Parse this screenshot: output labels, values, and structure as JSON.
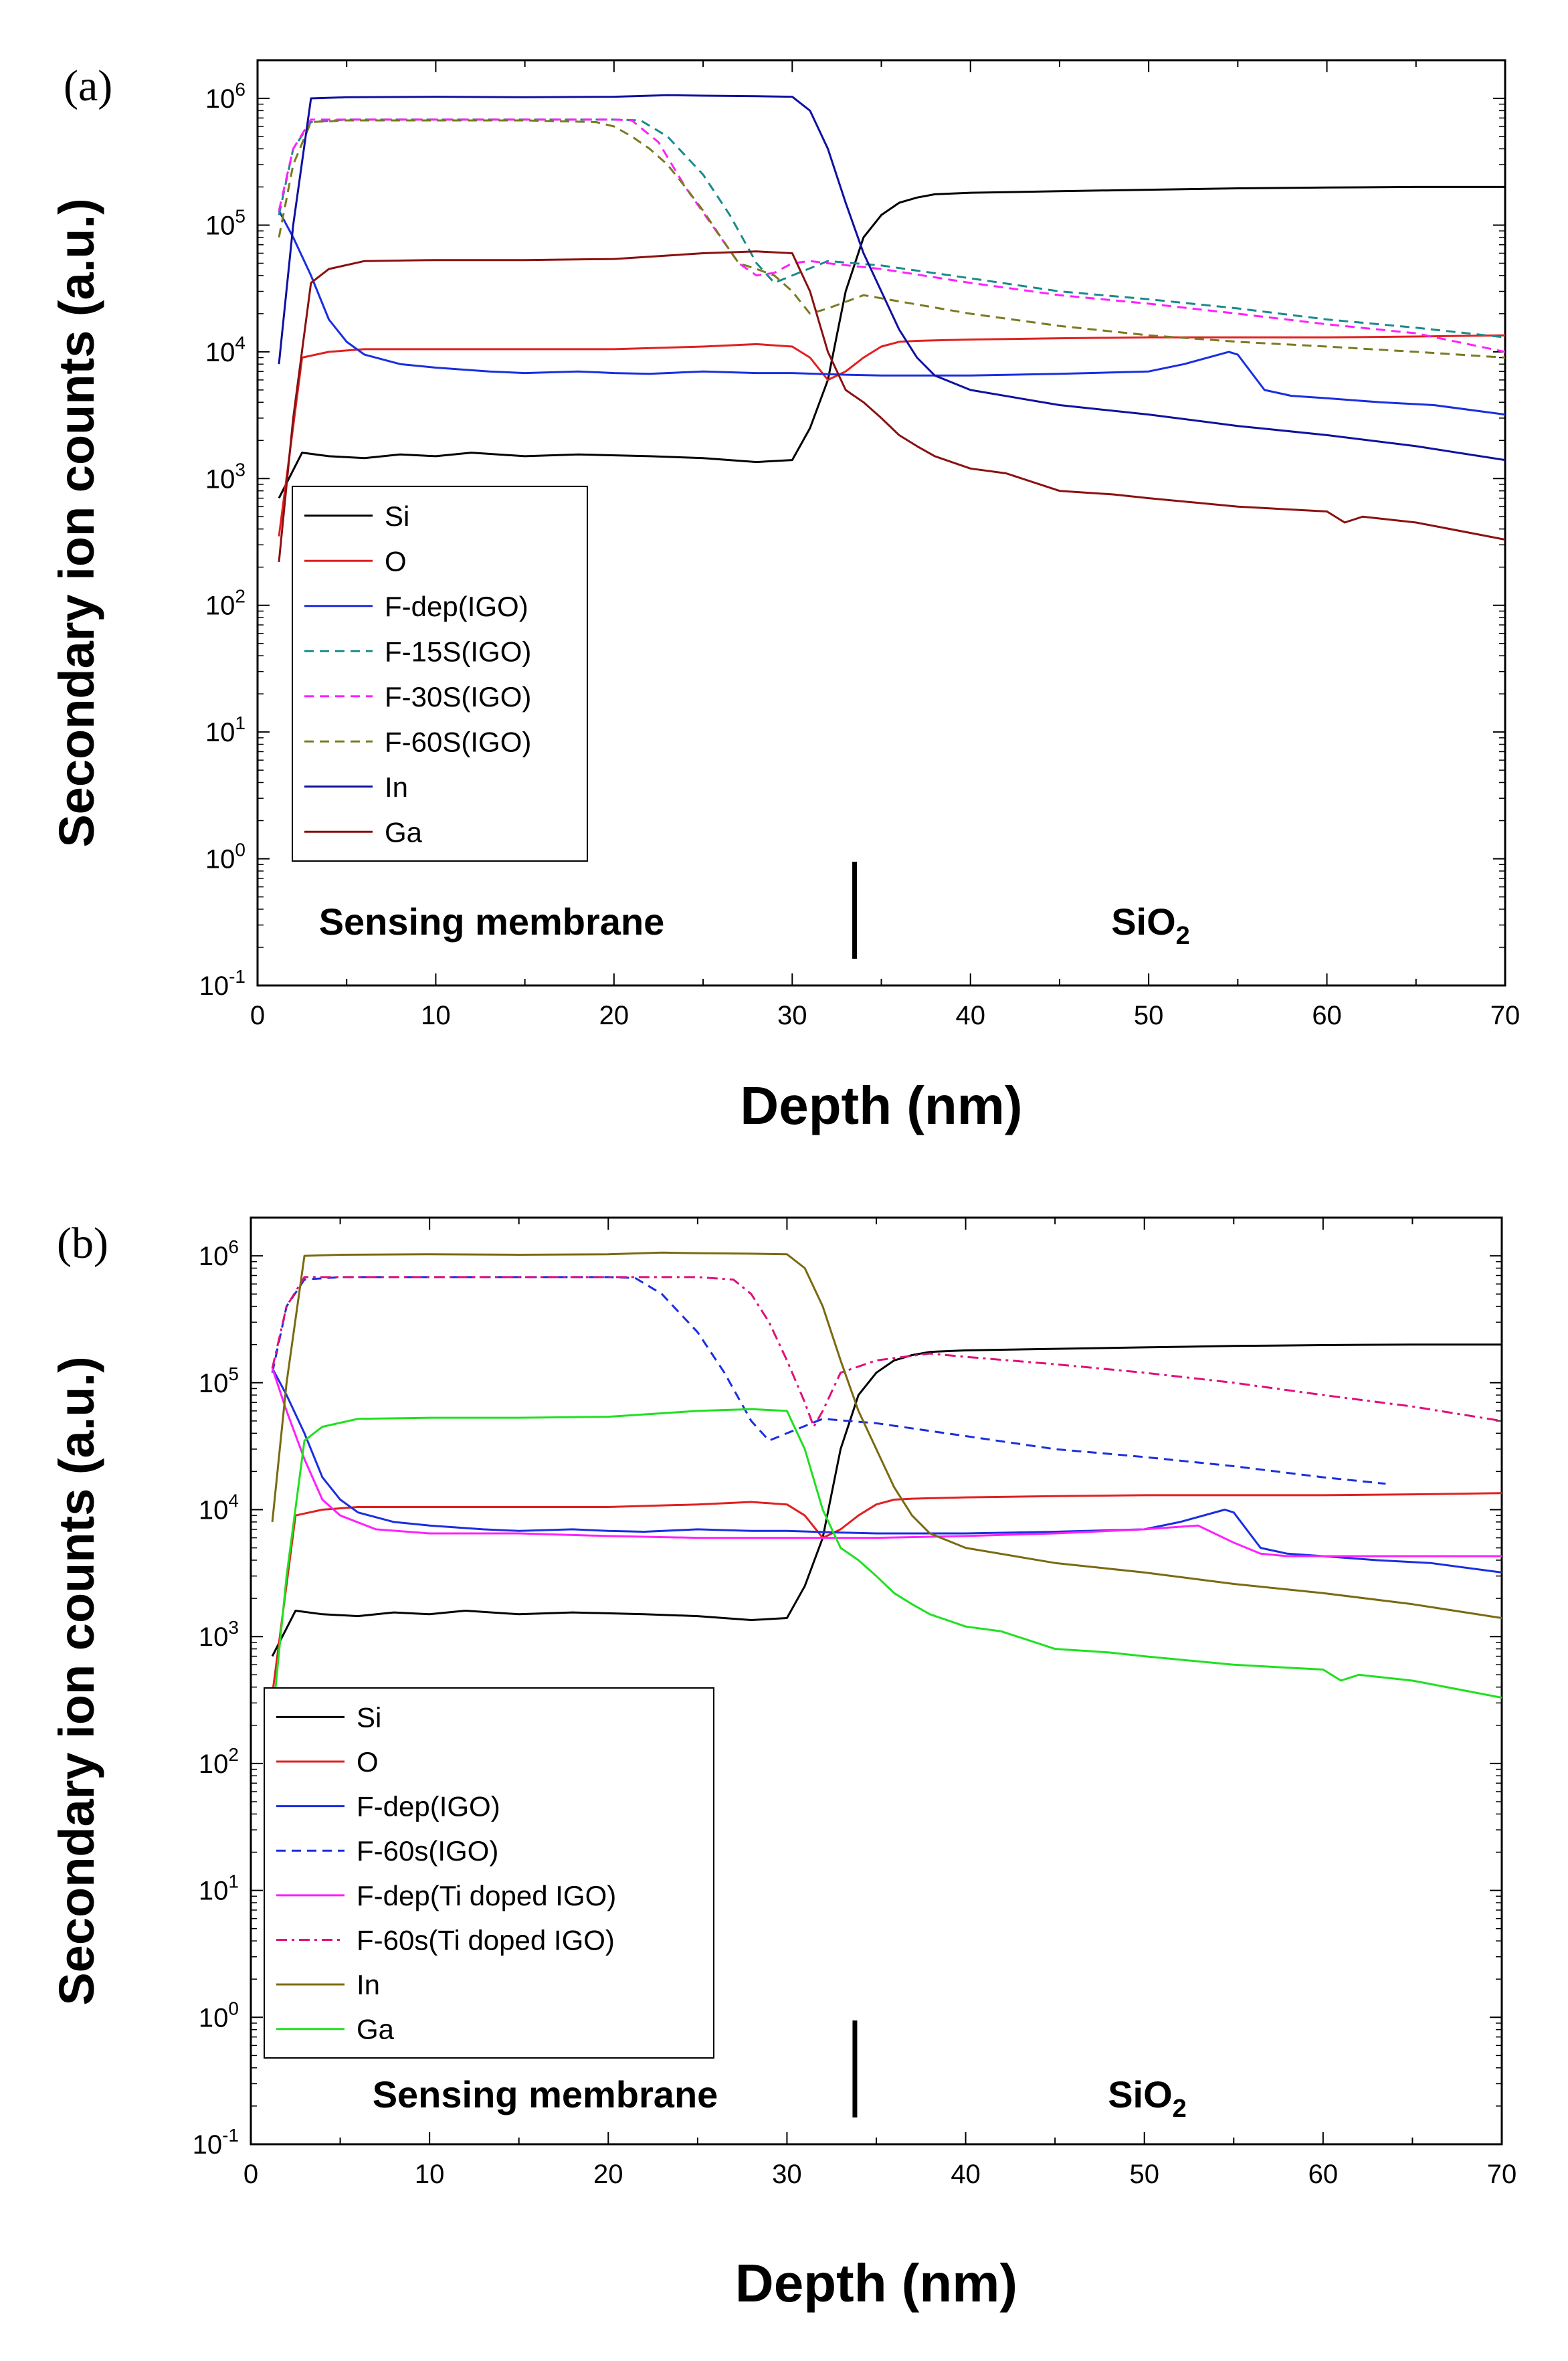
{
  "chart_data": [
    {
      "type": "line",
      "panel_label": "(a)",
      "xlabel": "Depth (nm)",
      "ylabel": "Secondary ion counts (a.u.)",
      "xlim": [
        0,
        70
      ],
      "ylim": [
        0.1,
        2000000
      ],
      "yscale": "log",
      "x_ticks": [
        "0",
        "10",
        "20",
        "30",
        "40",
        "50",
        "60",
        "70"
      ],
      "y_ticks": [
        {
          "base": "10",
          "exp": "-1"
        },
        {
          "base": "10",
          "exp": "0"
        },
        {
          "base": "10",
          "exp": "1"
        },
        {
          "base": "10",
          "exp": "2"
        },
        {
          "base": "10",
          "exp": "3"
        },
        {
          "base": "10",
          "exp": "4"
        },
        {
          "base": "10",
          "exp": "5"
        },
        {
          "base": "10",
          "exp": "6"
        }
      ],
      "interface_depth": 33.5,
      "region_left": "Sensing membrane",
      "region_right": {
        "base": "SiO",
        "sub": "2"
      },
      "legend_position": "lower-left",
      "series": [
        {
          "name": "Si",
          "color": "#000000",
          "dash": "solid",
          "x": [
            1.2,
            2.5,
            4,
            6,
            8,
            10,
            12,
            15,
            18,
            22,
            25,
            28,
            30,
            31,
            32,
            33,
            34,
            35,
            36,
            37,
            38,
            40,
            45,
            50,
            55,
            60,
            65,
            70
          ],
          "y": [
            700,
            1600,
            1500,
            1450,
            1550,
            1500,
            1600,
            1500,
            1550,
            1500,
            1450,
            1350,
            1400,
            2500,
            6000,
            30000,
            80000,
            120000,
            150000,
            165000,
            175000,
            180000,
            185000,
            190000,
            195000,
            198000,
            200000,
            200000
          ]
        },
        {
          "name": "O",
          "color": "#e02020",
          "dash": "solid",
          "x": [
            1.2,
            2.5,
            4,
            6,
            10,
            15,
            20,
            25,
            28,
            30,
            31,
            32,
            33,
            34,
            35,
            36,
            37,
            38,
            40,
            45,
            50,
            55,
            60,
            65,
            70
          ],
          "y": [
            350,
            9000,
            10000,
            10500,
            10500,
            10500,
            10500,
            11000,
            11500,
            11000,
            9000,
            6000,
            7000,
            9000,
            11000,
            12000,
            12200,
            12300,
            12500,
            12800,
            13000,
            13000,
            13000,
            13200,
            13500
          ]
        },
        {
          "name": "F-dep(IGO)",
          "color": "#1a2ee0",
          "dash": "solid",
          "x": [
            1.2,
            2,
            3,
            4,
            5,
            6,
            8,
            10,
            13,
            15,
            18,
            20,
            22,
            25,
            28,
            30,
            33,
            35,
            40,
            45,
            50,
            52,
            54.5,
            55,
            56.5,
            58,
            60,
            63,
            66,
            70
          ],
          "y": [
            130000,
            80000,
            40000,
            18000,
            12000,
            9500,
            8000,
            7500,
            7000,
            6800,
            7000,
            6800,
            6700,
            7000,
            6800,
            6800,
            6600,
            6500,
            6500,
            6700,
            7000,
            8000,
            10000,
            9500,
            5000,
            4500,
            4300,
            4000,
            3800,
            3200
          ]
        },
        {
          "name": "F-15S(IGO)",
          "color": "#1a8a8a",
          "dash": "dashed",
          "x": [
            1.2,
            2,
            3,
            5,
            10,
            15,
            20,
            21.5,
            23,
            25,
            26.5,
            28,
            29,
            30,
            32,
            35,
            40,
            45,
            50,
            55,
            60,
            65,
            70
          ],
          "y": [
            120000,
            400000,
            650000,
            680000,
            680000,
            680000,
            680000,
            670000,
            500000,
            250000,
            120000,
            50000,
            35000,
            40000,
            52000,
            48000,
            38000,
            30000,
            26000,
            22000,
            18000,
            15500,
            13000
          ]
        },
        {
          "name": "F-30S(IGO)",
          "color": "#ff20ff",
          "dash": "dashed",
          "x": [
            1.2,
            2,
            3,
            5,
            10,
            15,
            20,
            21,
            22.5,
            24,
            25.5,
            27,
            28,
            29,
            30,
            31,
            32,
            35,
            40,
            45,
            50,
            55,
            60,
            65,
            70
          ],
          "y": [
            130000,
            400000,
            680000,
            680000,
            680000,
            680000,
            680000,
            670000,
            450000,
            200000,
            100000,
            50000,
            40000,
            42000,
            50000,
            52000,
            50000,
            45000,
            35000,
            28000,
            24000,
            20000,
            16500,
            14000,
            10000
          ]
        },
        {
          "name": "F-60S(IGO)",
          "color": "#7a7a20",
          "dash": "dashed",
          "x": [
            1.2,
            2,
            3,
            5,
            10,
            15,
            19,
            20,
            21,
            22,
            23,
            24,
            25,
            26,
            27,
            28,
            29,
            30,
            31,
            32,
            34,
            36,
            40,
            45,
            50,
            55,
            60,
            65,
            70
          ],
          "y": [
            80000,
            300000,
            650000,
            670000,
            670000,
            670000,
            650000,
            600000,
            500000,
            400000,
            300000,
            200000,
            130000,
            80000,
            50000,
            45000,
            40000,
            30000,
            20000,
            22000,
            28000,
            25000,
            20000,
            16000,
            13500,
            12000,
            11000,
            10000,
            9000
          ]
        },
        {
          "name": "In",
          "color": "#1010a0",
          "dash": "solid",
          "x": [
            1.2,
            2,
            3,
            5,
            10,
            15,
            20,
            23,
            25,
            28,
            30,
            31,
            32,
            33,
            34,
            35,
            36,
            37,
            38,
            40,
            45,
            50,
            55,
            60,
            65,
            70
          ],
          "y": [
            8000,
            100000,
            1000000,
            1020000,
            1030000,
            1020000,
            1030000,
            1060000,
            1050000,
            1040000,
            1030000,
            800000,
            400000,
            150000,
            60000,
            30000,
            15000,
            9000,
            6500,
            5000,
            3800,
            3200,
            2600,
            2200,
            1800,
            1400
          ]
        },
        {
          "name": "Ga",
          "color": "#8b1010",
          "dash": "solid",
          "x": [
            1.2,
            2,
            3,
            4,
            6,
            10,
            15,
            20,
            25,
            28,
            30,
            31,
            32,
            33,
            34,
            35,
            36,
            37,
            38,
            40,
            42,
            45,
            48,
            50,
            55,
            60,
            61,
            62,
            65,
            70
          ],
          "y": [
            220,
            3000,
            35000,
            45000,
            52000,
            53000,
            53000,
            54000,
            60000,
            62000,
            60000,
            30000,
            10000,
            5000,
            4000,
            3000,
            2200,
            1800,
            1500,
            1200,
            1100,
            800,
            750,
            700,
            600,
            550,
            450,
            500,
            450,
            330
          ]
        }
      ]
    },
    {
      "type": "line",
      "panel_label": "(b)",
      "xlabel": "Depth (nm)",
      "ylabel": "Secondary ion counts (a.u.)",
      "xlim": [
        0,
        70
      ],
      "ylim": [
        0.1,
        2000000
      ],
      "yscale": "log",
      "x_ticks": [
        "0",
        "10",
        "20",
        "30",
        "40",
        "50",
        "60",
        "70"
      ],
      "y_ticks": [
        {
          "base": "10",
          "exp": "-1"
        },
        {
          "base": "10",
          "exp": "0"
        },
        {
          "base": "10",
          "exp": "1"
        },
        {
          "base": "10",
          "exp": "2"
        },
        {
          "base": "10",
          "exp": "3"
        },
        {
          "base": "10",
          "exp": "4"
        },
        {
          "base": "10",
          "exp": "5"
        },
        {
          "base": "10",
          "exp": "6"
        }
      ],
      "interface_depth": 33.8,
      "region_left": "Sensing membrane",
      "region_right": {
        "base": "SiO",
        "sub": "2"
      },
      "legend_position": "lower-left",
      "series": [
        {
          "name": "Si",
          "color": "#000000",
          "dash": "solid",
          "x": [
            1.2,
            2.5,
            4,
            6,
            8,
            10,
            12,
            15,
            18,
            22,
            25,
            28,
            30,
            31,
            32,
            33,
            34,
            35,
            36,
            37,
            38,
            40,
            45,
            50,
            55,
            60,
            65,
            70
          ],
          "y": [
            700,
            1600,
            1500,
            1450,
            1550,
            1500,
            1600,
            1500,
            1550,
            1500,
            1450,
            1350,
            1400,
            2500,
            6000,
            30000,
            80000,
            120000,
            150000,
            165000,
            175000,
            180000,
            185000,
            190000,
            195000,
            198000,
            200000,
            200000
          ]
        },
        {
          "name": "O",
          "color": "#e02020",
          "dash": "solid",
          "x": [
            1.2,
            2.5,
            4,
            6,
            10,
            15,
            20,
            25,
            28,
            30,
            31,
            32,
            33,
            34,
            35,
            36,
            37,
            38,
            40,
            45,
            50,
            55,
            60,
            65,
            70
          ],
          "y": [
            350,
            9000,
            10000,
            10500,
            10500,
            10500,
            10500,
            11000,
            11500,
            11000,
            9000,
            6000,
            7000,
            9000,
            11000,
            12000,
            12200,
            12300,
            12500,
            12800,
            13000,
            13000,
            13000,
            13200,
            13500
          ]
        },
        {
          "name": "F-dep(IGO)",
          "color": "#1a2ee0",
          "dash": "solid",
          "x": [
            1.2,
            2,
            3,
            4,
            5,
            6,
            8,
            10,
            13,
            15,
            18,
            20,
            22,
            25,
            28,
            30,
            33,
            35,
            40,
            45,
            50,
            52,
            54.5,
            55,
            56.5,
            58,
            60,
            63,
            66,
            70
          ],
          "y": [
            130000,
            80000,
            40000,
            18000,
            12000,
            9500,
            8000,
            7500,
            7000,
            6800,
            7000,
            6800,
            6700,
            7000,
            6800,
            6800,
            6600,
            6500,
            6500,
            6700,
            7000,
            8000,
            10000,
            9500,
            5000,
            4500,
            4300,
            4000,
            3800,
            3200
          ]
        },
        {
          "name": "F-60s(IGO)",
          "color": "#1a2ee0",
          "dash": "dashed",
          "x": [
            1.2,
            2,
            3,
            5,
            10,
            15,
            20,
            21.5,
            23,
            25,
            26.5,
            28,
            29,
            30,
            32,
            35,
            40,
            45,
            50,
            55,
            60,
            63.5
          ],
          "y": [
            120000,
            400000,
            650000,
            680000,
            680000,
            680000,
            680000,
            670000,
            500000,
            250000,
            120000,
            50000,
            35000,
            40000,
            52000,
            48000,
            38000,
            30000,
            26000,
            22000,
            18000,
            16000
          ]
        },
        {
          "name": "F-dep(Ti doped IGO)",
          "color": "#ff20ff",
          "dash": "solid",
          "x": [
            1.2,
            2,
            3,
            4,
            5,
            7,
            10,
            15,
            20,
            25,
            30,
            35,
            40,
            45,
            50,
            53,
            55,
            56.5,
            58,
            60,
            65,
            70
          ],
          "y": [
            130000,
            60000,
            25000,
            12000,
            9000,
            7000,
            6500,
            6500,
            6200,
            6000,
            6000,
            6000,
            6200,
            6500,
            7000,
            7500,
            5500,
            4500,
            4300,
            4300,
            4300,
            4300
          ]
        },
        {
          "name": "F-60s(Ti doped IGO)",
          "color": "#e0107a",
          "dash": "dashdot",
          "x": [
            1.2,
            2,
            3,
            5,
            10,
            15,
            20,
            25,
            27,
            28,
            29,
            30,
            31,
            31.5,
            32,
            33,
            35,
            38,
            40,
            45,
            50,
            55,
            60,
            65,
            70
          ],
          "y": [
            130000,
            400000,
            680000,
            680000,
            680000,
            680000,
            680000,
            680000,
            650000,
            500000,
            300000,
            150000,
            70000,
            45000,
            60000,
            120000,
            150000,
            170000,
            160000,
            140000,
            120000,
            100000,
            80000,
            65000,
            50000
          ]
        },
        {
          "name": "In",
          "color": "#7a6a10",
          "dash": "solid",
          "x": [
            1.2,
            2,
            3,
            5,
            10,
            15,
            20,
            23,
            25,
            28,
            30,
            31,
            32,
            33,
            34,
            35,
            36,
            37,
            38,
            40,
            45,
            50,
            55,
            60,
            65,
            70
          ],
          "y": [
            8000,
            100000,
            1000000,
            1020000,
            1030000,
            1020000,
            1030000,
            1060000,
            1050000,
            1040000,
            1030000,
            800000,
            400000,
            150000,
            60000,
            30000,
            15000,
            9000,
            6500,
            5000,
            3800,
            3200,
            2600,
            2200,
            1800,
            1400
          ]
        },
        {
          "name": "Ga",
          "color": "#20e020",
          "dash": "solid",
          "x": [
            1.2,
            2,
            3,
            4,
            6,
            10,
            15,
            20,
            25,
            28,
            30,
            31,
            32,
            33,
            34,
            35,
            36,
            37,
            38,
            40,
            42,
            45,
            48,
            50,
            55,
            60,
            61,
            62,
            65,
            70
          ],
          "y": [
            220,
            3000,
            35000,
            45000,
            52000,
            53000,
            53000,
            54000,
            60000,
            62000,
            60000,
            30000,
            10000,
            5000,
            4000,
            3000,
            2200,
            1800,
            1500,
            1200,
            1100,
            800,
            750,
            700,
            600,
            550,
            450,
            500,
            450,
            330
          ]
        }
      ]
    }
  ]
}
